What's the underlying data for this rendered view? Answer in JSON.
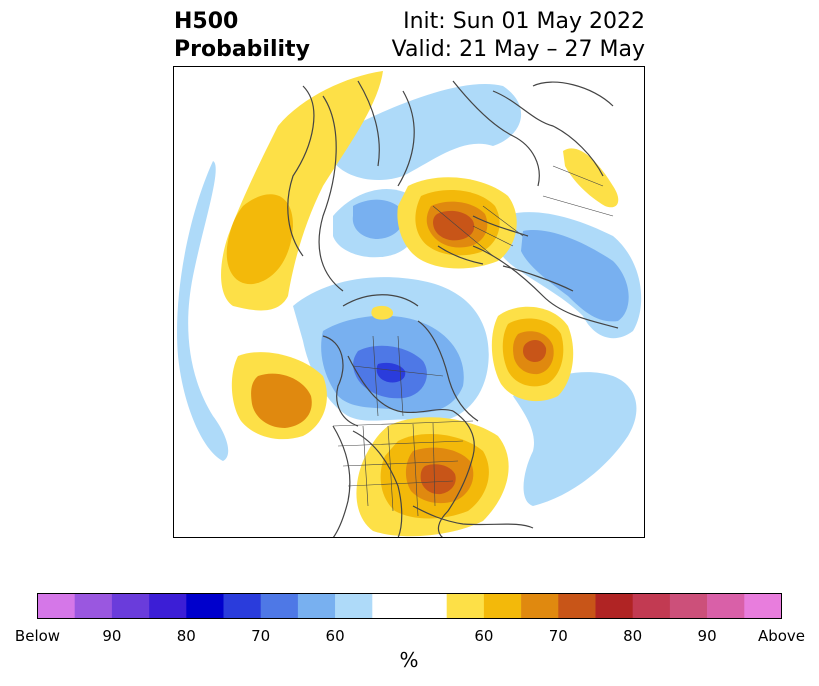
{
  "title": {
    "left_line1": "H500",
    "left_line2": "Probability",
    "right_line1": "Init: Sun 01 May 2022",
    "right_line2": "Valid: 21 May – 27 May"
  },
  "colorbar": {
    "unit": "%",
    "below_colors": [
      "#d577e8",
      "#9a57e0",
      "#6a3cdb",
      "#3c1ed6",
      "#0000cc",
      "#2a3cdc",
      "#4e78e6",
      "#78b0f0",
      "#aedaf9"
    ],
    "neutral_color": "#ffffff",
    "above_colors": [
      "#fde047",
      "#f3b90a",
      "#e0890f",
      "#c85518",
      "#b02424",
      "#c23a52",
      "#cc507a",
      "#d960a8",
      "#e87ddd"
    ],
    "tick_labels": [
      {
        "text": "Below",
        "slot": 0
      },
      {
        "text": "90",
        "slot": 2
      },
      {
        "text": "80",
        "slot": 4
      },
      {
        "text": "70",
        "slot": 6
      },
      {
        "text": "60",
        "slot": 8
      },
      {
        "text": "60",
        "slot": 12
      },
      {
        "text": "70",
        "slot": 14
      },
      {
        "text": "80",
        "slot": 16
      },
      {
        "text": "90",
        "slot": 18
      },
      {
        "text": "Above",
        "slot": 20
      }
    ]
  }
}
